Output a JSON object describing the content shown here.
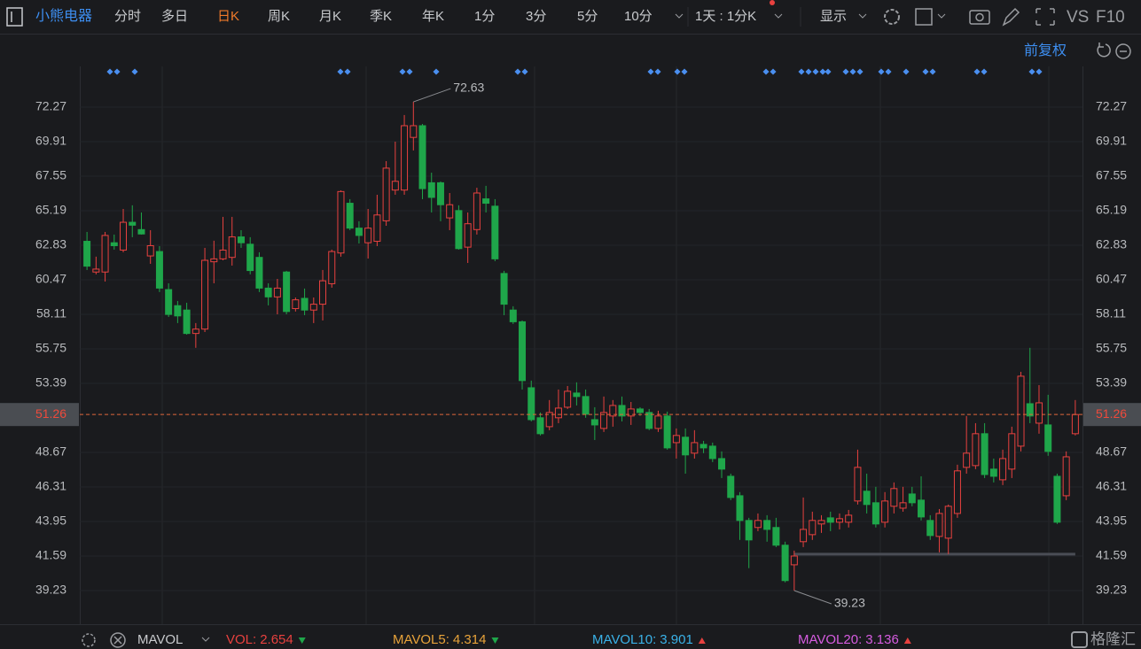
{
  "header": {
    "stock": "小熊电器",
    "tabs": [
      "分时",
      "多日",
      "日K",
      "周K",
      "月K",
      "季K",
      "年K",
      "1分",
      "3分",
      "5分",
      "10分"
    ],
    "active_tab": 2,
    "period": "1天 : 1分K",
    "display": "显示",
    "vs": "VS",
    "f10": "F10",
    "adjust": "前复权"
  },
  "chart_data": {
    "type": "candlestick",
    "open": [
      63.1,
      61.0,
      61.0,
      63.0,
      62.5,
      64.4,
      63.9,
      62.1,
      62.4,
      59.8,
      58.7,
      58.4,
      56.8,
      57.1,
      61.7,
      61.9,
      62.0,
      63.4,
      62.9,
      62.0,
      59.9,
      59.3,
      61.0,
      58.5,
      59.2,
      58.4,
      58.8,
      60.2,
      62.3,
      65.7,
      64.0,
      63.0,
      63.1,
      64.5,
      66.6,
      66.6,
      70.2,
      71.0,
      67.1,
      67.1,
      64.7,
      65.2,
      62.7,
      63.9,
      66.0,
      65.5,
      60.9,
      58.4,
      57.6,
      53.09,
      51.04,
      50.43,
      51.04,
      51.76,
      52.73,
      52.49,
      50.91,
      50.31,
      51.16,
      51.88,
      51.16,
      51.64,
      51.4,
      50.31,
      51.16,
      49.34,
      49.71,
      48.62,
      49.22,
      49.1,
      48.25,
      47.04,
      45.71,
      44.02,
      43.54,
      44.02,
      43.54,
      42.33,
      40.99,
      42.57,
      43.05,
      43.78,
      44.2,
      43.9,
      43.9,
      45.35,
      46.02,
      45.23,
      43.9,
      44.99,
      44.86,
      45.83,
      45.41,
      44.02,
      42.93,
      42.81,
      44.5,
      47.65,
      47.77,
      49.95,
      47.53,
      46.8,
      47.53,
      49.1,
      52.0,
      50.67,
      50.55,
      47.04,
      45.71,
      49.95
    ],
    "high": [
      63.74,
      62.05,
      63.74,
      63.56,
      65.31,
      65.56,
      65.07,
      63.86,
      62.77,
      60.23,
      59.02,
      58.9,
      57.51,
      62.65,
      63.14,
      64.77,
      64.77,
      63.86,
      63.38,
      62.35,
      60.23,
      60.53,
      61.08,
      59.26,
      59.87,
      59.26,
      61.14,
      62.53,
      66.58,
      65.98,
      64.47,
      65.31,
      66.28,
      68.58,
      69.91,
      71.73,
      72.63,
      71.12,
      67.79,
      67.19,
      66.4,
      65.56,
      65.07,
      66.76,
      66.89,
      65.98,
      61.08,
      58.66,
      57.69,
      53.58,
      51.4,
      52.25,
      52.97,
      53.21,
      53.46,
      52.97,
      51.76,
      52.49,
      52.25,
      52.49,
      52.12,
      51.76,
      51.64,
      51.52,
      51.46,
      50.31,
      50.31,
      50.19,
      49.46,
      49.34,
      48.74,
      47.22,
      45.96,
      44.2,
      44.5,
      44.38,
      44.2,
      42.57,
      41.96,
      45.59,
      44.62,
      44.38,
      44.62,
      44.5,
      44.74,
      48.86,
      47.22,
      46.32,
      45.96,
      46.62,
      46.32,
      46.32,
      47.04,
      44.38,
      44.8,
      45.11,
      47.83,
      51.16,
      50.67,
      50.67,
      48.25,
      48.86,
      50.43,
      54.18,
      55.82,
      53.27,
      52.61,
      47.22,
      48.74,
      52.25
    ],
    "low": [
      61.14,
      60.84,
      60.35,
      62.53,
      62.35,
      63.38,
      63.56,
      61.56,
      59.63,
      57.93,
      57.51,
      56.72,
      55.82,
      56.9,
      60.23,
      61.8,
      61.44,
      62.65,
      60.84,
      59.63,
      58.72,
      58.11,
      58.11,
      58.3,
      58.05,
      57.51,
      57.69,
      59.93,
      62.05,
      63.86,
      62.95,
      61.92,
      62.77,
      64.16,
      66.28,
      66.28,
      69.31,
      65.98,
      65.07,
      64.47,
      63.86,
      62.53,
      61.62,
      63.56,
      65.07,
      61.74,
      58.05,
      57.45,
      52.97,
      50.79,
      49.83,
      50.19,
      50.67,
      51.64,
      51.88,
      51.04,
      49.52,
      50.07,
      50.43,
      50.79,
      50.55,
      51.16,
      50.19,
      50.07,
      48.86,
      48.25,
      47.22,
      48.25,
      48.62,
      48.01,
      46.92,
      45.41,
      42.69,
      40.76,
      43.29,
      42.57,
      42.2,
      39.79,
      39.23,
      42.2,
      42.69,
      43.17,
      43.29,
      43.41,
      43.54,
      45.11,
      44.5,
      43.54,
      43.54,
      44.5,
      44.62,
      44.99,
      44.02,
      42.69,
      41.84,
      41.72,
      44.2,
      47.22,
      47.53,
      46.92,
      46.62,
      46.44,
      46.92,
      48.74,
      50.67,
      49.95,
      48.44,
      43.78,
      45.41,
      49.83
    ],
    "close": [
      61.4,
      61.2,
      63.5,
      62.8,
      64.4,
      64.2,
      63.6,
      62.8,
      59.9,
      58.1,
      58.0,
      56.8,
      57.1,
      61.8,
      61.9,
      62.5,
      63.4,
      63.0,
      61.1,
      59.9,
      59.3,
      59.9,
      58.3,
      59.1,
      58.4,
      58.8,
      60.4,
      62.4,
      66.5,
      64.0,
      63.5,
      64.0,
      64.9,
      68.1,
      67.2,
      71.0,
      71.0,
      66.7,
      66.1,
      65.6,
      65.6,
      62.6,
      64.3,
      66.4,
      65.7,
      61.9,
      58.8,
      57.6,
      53.58,
      50.91,
      49.95,
      51.4,
      51.7,
      52.85,
      52.49,
      51.28,
      50.55,
      51.4,
      51.88,
      51.16,
      51.64,
      51.4,
      50.31,
      51.16,
      48.98,
      49.83,
      48.5,
      49.34,
      48.98,
      48.25,
      47.53,
      45.59,
      44.02,
      42.69,
      44.02,
      43.41,
      42.33,
      39.91,
      41.59,
      43.41,
      44.02,
      44.02,
      43.9,
      44.14,
      44.38,
      47.65,
      45.11,
      43.78,
      45.35,
      46.2,
      45.23,
      45.23,
      44.26,
      42.99,
      44.5,
      44.99,
      47.41,
      48.62,
      49.95,
      47.16,
      47.04,
      48.25,
      49.95,
      53.88,
      51.16,
      52.06,
      48.74,
      43.9,
      48.37,
      51.26
    ],
    "up_color": "#e8413f",
    "down_color": "#1fa64a",
    "ylim": [
      36.93,
      74.75
    ],
    "yticks": [
      39.23,
      41.59,
      43.95,
      46.31,
      48.67,
      51.26,
      53.39,
      55.75,
      58.11,
      60.47,
      62.83,
      65.19,
      67.55,
      69.91,
      72.27
    ],
    "grid": true,
    "last_price": 51.26,
    "max_label": 72.63,
    "min_label": 39.23,
    "support_level": 41.72
  },
  "footer": {
    "indicator": "MAVOL",
    "indicators": [
      {
        "label": "VOL:",
        "value": 2.654,
        "color": "#e8413f",
        "trend": "down"
      },
      {
        "label": "MAVOL5:",
        "value": 4.314,
        "color": "#e8a33a",
        "trend": "down"
      },
      {
        "label": "MAVOL10:",
        "value": 3.901,
        "color": "#3ab2e8",
        "trend": "up"
      },
      {
        "label": "MAVOL20:",
        "value": 3.136,
        "color": "#d65ce0",
        "trend": "up"
      }
    ],
    "watermark": "格隆汇"
  }
}
